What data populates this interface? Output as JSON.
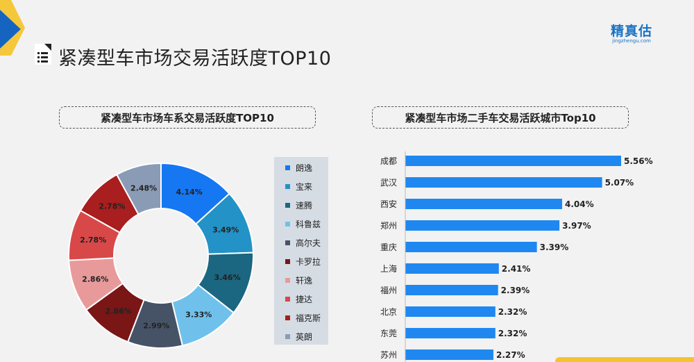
{
  "header": {
    "title": "紧凑型车市场交易活跃度TOP10",
    "logo_cn": "精真估",
    "logo_en": "jingzhengu.com"
  },
  "left_panel": {
    "title": "紧凑型车市场车系交易活跃度TOP10"
  },
  "right_panel": {
    "title": "紧凑型车市场二手车交易活跃城市Top10"
  },
  "colors": {
    "accent": "#1a72c4",
    "bar": "#1e88f0",
    "corner_blue": "#1565c0",
    "corner_yellow": "#f4c430"
  },
  "chart_data": [
    {
      "type": "pie",
      "variant": "donut",
      "title": "紧凑型车市场车系交易活跃度TOP10",
      "legend_position": "right",
      "slices": [
        {
          "label": "朗逸",
          "value": 4.14,
          "display": "4.14%",
          "color": "#1677f2"
        },
        {
          "label": "宝来",
          "value": 3.49,
          "display": "3.49%",
          "color": "#2392c6"
        },
        {
          "label": "速腾",
          "value": 3.46,
          "display": "3.46%",
          "color": "#1b6680"
        },
        {
          "label": "科鲁兹",
          "value": 3.33,
          "display": "3.33%",
          "color": "#6fc1ec"
        },
        {
          "label": "高尔夫",
          "value": 2.99,
          "display": "2.99%",
          "color": "#465366"
        },
        {
          "label": "卡罗拉",
          "value": 2.86,
          "display": "2.86%",
          "color": "#7a1616"
        },
        {
          "label": "轩逸",
          "value": 2.86,
          "display": "2.86%",
          "color": "#e89a9a"
        },
        {
          "label": "捷达",
          "value": 2.78,
          "display": "2.78%",
          "color": "#d84848"
        },
        {
          "label": "福克斯",
          "value": 2.78,
          "display": "2.78%",
          "color": "#a91e1e"
        },
        {
          "label": "英朗",
          "value": 2.48,
          "display": "2.48%",
          "color": "#8a9bb5"
        }
      ]
    },
    {
      "type": "bar",
      "orientation": "horizontal",
      "title": "紧凑型车市场二手车交易活跃城市Top10",
      "categories": [
        "成都",
        "武汉",
        "西安",
        "郑州",
        "重庆",
        "上海",
        "福州",
        "北京",
        "东莞",
        "苏州"
      ],
      "values": [
        5.56,
        5.07,
        4.04,
        3.97,
        3.39,
        2.41,
        2.39,
        2.32,
        2.32,
        2.27
      ],
      "labels": [
        "5.56%",
        "5.07%",
        "4.04%",
        "3.97%",
        "3.39%",
        "2.41%",
        "2.39%",
        "2.32%",
        "2.32%",
        "2.27%"
      ],
      "grid": false
    }
  ]
}
